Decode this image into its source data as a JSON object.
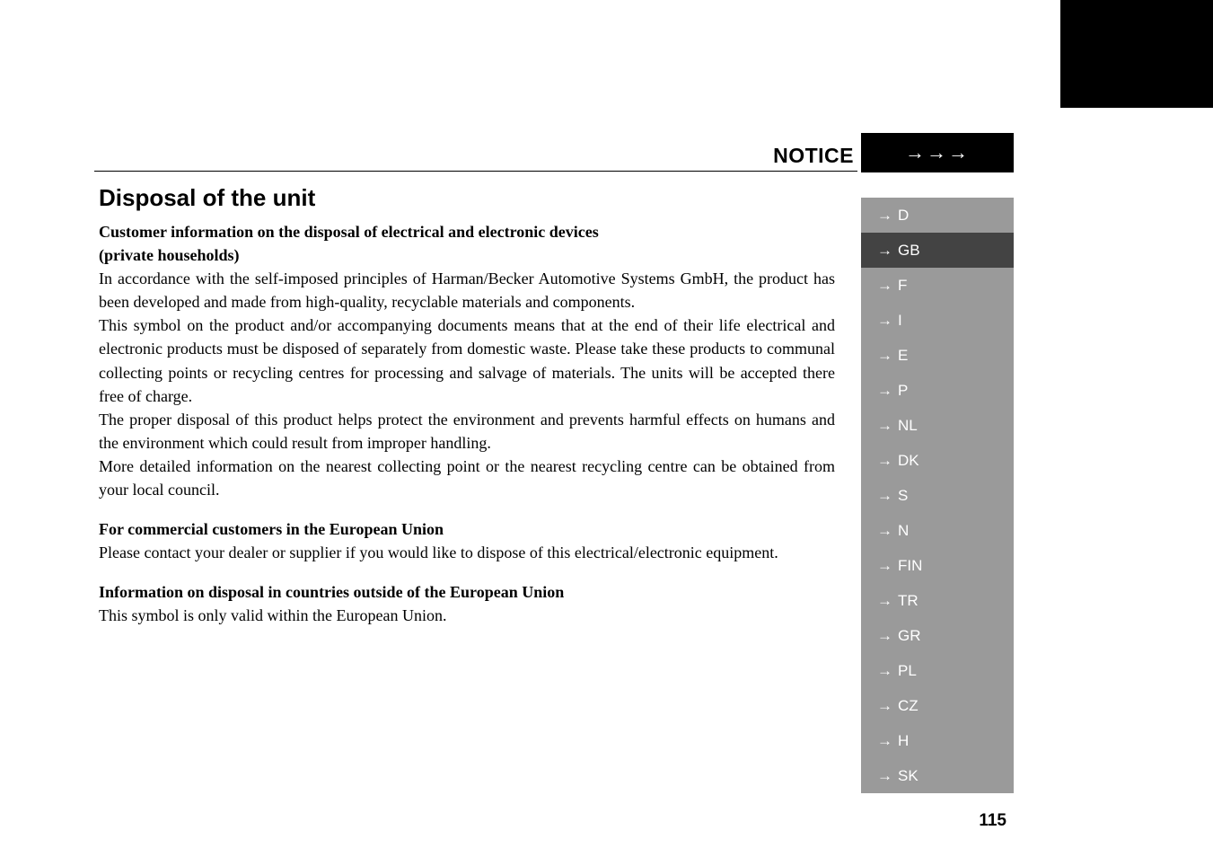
{
  "header": {
    "notice_label": "NOTICE",
    "arrows": "→→→"
  },
  "section_title": "Disposal of the unit",
  "body": {
    "p1_bold_line1": "Customer information on the disposal of electrical and electronic devices",
    "p1_bold_line2": "(private households)",
    "p2": "In accordance with the self-imposed principles of Harman/Becker Automotive Systems GmbH, the product has been developed and made from high-quality, recyclable materials and components.",
    "p3": "This symbol on the product and/or accompanying documents means that at the end of their life electrical and electronic products must be disposed of separately from domestic waste. Please take these products to communal collecting points or recycling centres for processing and salvage of materials. The units will be accepted there free of charge.",
    "p4": "The proper disposal of this product helps protect the environment and prevents harmful effects on humans and the environment which could result from improper handling.",
    "p5": "More detailed information on the nearest collecting point or the nearest recycling centre can be obtained from your local council.",
    "p6_bold": "For commercial customers in the European Union",
    "p7": "Please contact your dealer or supplier if you would like to dispose of this electrical/electronic equipment.",
    "p8_bold": "Information on disposal in countries outside of the European Union",
    "p9": "This symbol is only valid within the European Union."
  },
  "languages": [
    {
      "code": "D",
      "active": false
    },
    {
      "code": "GB",
      "active": true
    },
    {
      "code": "F",
      "active": false
    },
    {
      "code": "I",
      "active": false
    },
    {
      "code": "E",
      "active": false
    },
    {
      "code": "P",
      "active": false
    },
    {
      "code": "NL",
      "active": false
    },
    {
      "code": "DK",
      "active": false
    },
    {
      "code": "S",
      "active": false
    },
    {
      "code": "N",
      "active": false
    },
    {
      "code": "FIN",
      "active": false
    },
    {
      "code": "TR",
      "active": false
    },
    {
      "code": "GR",
      "active": false
    },
    {
      "code": "PL",
      "active": false
    },
    {
      "code": "CZ",
      "active": false
    },
    {
      "code": "H",
      "active": false
    },
    {
      "code": "SK",
      "active": false
    }
  ],
  "page_number": "115",
  "colors": {
    "active_bg": "#434343",
    "inactive_bg": "#9a9a9a",
    "black": "#000000",
    "white": "#ffffff"
  }
}
